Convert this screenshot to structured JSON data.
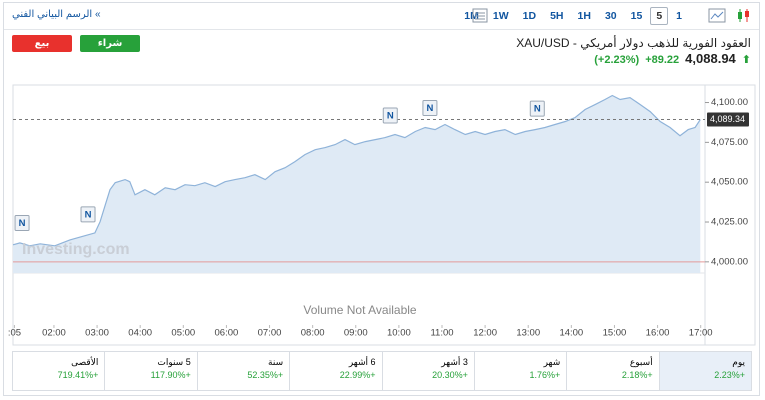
{
  "header": {
    "link": "» الرسم البياني الفني",
    "timeframes": [
      "1M",
      "1W",
      "1D",
      "5H",
      "1H",
      "30",
      "15",
      "5",
      "1"
    ],
    "active_timeframe": "5",
    "sell": "بيع",
    "buy": "شراء",
    "title": "XAU/USD - العقود الفورية للذهب دولار أمريكي",
    "price": "4,088.94",
    "change": "+89.22",
    "change_pct": "(+2.23%)"
  },
  "chart_data": {
    "type": "area",
    "color": "#8fb3d9",
    "fill": "#dfeaf5",
    "x": [
      1.05,
      1.21,
      1.44,
      1.68,
      2.02,
      2.37,
      2.72,
      2.95,
      3.07,
      3.19,
      3.3,
      3.42,
      3.65,
      3.76,
      3.88,
      4.11,
      4.34,
      4.58,
      4.81,
      5.04,
      5.27,
      5.5,
      5.74,
      5.97,
      6.2,
      6.43,
      6.66,
      6.9,
      7.13,
      7.36,
      7.59,
      7.82,
      8.06,
      8.29,
      8.52,
      8.75,
      8.98,
      9.22,
      9.45,
      9.68,
      9.91,
      10.14,
      10.38,
      10.61,
      10.84,
      11.07,
      11.3,
      11.54,
      11.77,
      12.0,
      12.23,
      12.46,
      12.7,
      12.93,
      13.16,
      13.39,
      13.62,
      13.86,
      14.09,
      14.32,
      14.55,
      14.78,
      14.95,
      15.13,
      15.36,
      15.6,
      15.83,
      16.06,
      16.29,
      16.52,
      16.71,
      16.87,
      16.99
    ],
    "values": [
      4010.7,
      4011.9,
      4010.1,
      4011.3,
      4010.1,
      4013.8,
      4016.4,
      4018.2,
      4025.2,
      4035.8,
      4045.3,
      4049.7,
      4051.6,
      4050.3,
      4042.1,
      4045.3,
      4042.1,
      4046.5,
      4045.3,
      4048.4,
      4047.8,
      4049.7,
      4047.2,
      4050.3,
      4051.6,
      4052.8,
      4054.7,
      4051.6,
      4056.6,
      4059.1,
      4062.9,
      4067.3,
      4070.4,
      4071.7,
      4073.6,
      4076.7,
      4073.6,
      4075.5,
      4076.7,
      4078.0,
      4079.9,
      4078.0,
      4081.8,
      4084.3,
      4083.0,
      4086.2,
      4083.0,
      4079.9,
      4081.8,
      4079.9,
      4081.8,
      4083.0,
      4079.9,
      4081.8,
      4083.0,
      4084.3,
      4086.2,
      4088.1,
      4090.6,
      4095.6,
      4098.7,
      4101.9,
      4104.4,
      4101.9,
      4103.1,
      4098.7,
      4094.3,
      4088.1,
      4084.3,
      4079.2,
      4083.0,
      4084.3,
      4089.3
    ],
    "xlim": [
      1.05,
      17.1
    ],
    "ylim": [
      3993,
      4111
    ],
    "xticks": [
      {
        "value": 1.083,
        "label": ":05"
      },
      {
        "value": 2,
        "label": "02:00"
      },
      {
        "value": 3,
        "label": "03:00"
      },
      {
        "value": 4,
        "label": "04:00"
      },
      {
        "value": 5,
        "label": "05:00"
      },
      {
        "value": 6,
        "label": "06:00"
      },
      {
        "value": 7,
        "label": "07:00"
      },
      {
        "value": 8,
        "label": "08:00"
      },
      {
        "value": 9,
        "label": "09:00"
      },
      {
        "value": 10,
        "label": "10:00"
      },
      {
        "value": 11,
        "label": "11:00"
      },
      {
        "value": 12,
        "label": "12:00"
      },
      {
        "value": 13,
        "label": "13:00"
      },
      {
        "value": 14,
        "label": "14:00"
      },
      {
        "value": 15,
        "label": "15:00"
      },
      {
        "value": 16,
        "label": "16:00"
      },
      {
        "value": 17,
        "label": "17:00"
      }
    ],
    "yticks": [
      {
        "value": 4000,
        "label": "4,000.00"
      },
      {
        "value": 4025,
        "label": "4,025.00"
      },
      {
        "value": 4050,
        "label": "4,050.00"
      },
      {
        "value": 4075,
        "label": "4,075.00"
      },
      {
        "value": 4100,
        "label": "4,100.00"
      }
    ],
    "last_price": {
      "value": 4089.34,
      "label": "4,089.34"
    },
    "previous_close": 4000,
    "news": [
      {
        "x": 1.26,
        "label": "N"
      },
      {
        "x": 2.79,
        "label": "N"
      },
      {
        "x": 9.8,
        "label": "N"
      },
      {
        "x": 10.72,
        "label": "N"
      },
      {
        "x": 13.21,
        "label": "N"
      }
    ],
    "watermark": "Investing.com",
    "volume_note": "Volume Not Available"
  },
  "performance": [
    {
      "period": "يوم",
      "change": "+2.23%"
    },
    {
      "period": "أسبوع",
      "change": "+2.18%"
    },
    {
      "period": "شهر",
      "change": "+1.76%"
    },
    {
      "period": "3 أشهر",
      "change": "+20.30%"
    },
    {
      "period": "6 أشهر",
      "change": "+22.99%"
    },
    {
      "period": "سنة",
      "change": "+52.35%"
    },
    {
      "period": "5 سنوات",
      "change": "+117.90%"
    },
    {
      "period": "الأقصى",
      "change": "+719.41%"
    }
  ]
}
